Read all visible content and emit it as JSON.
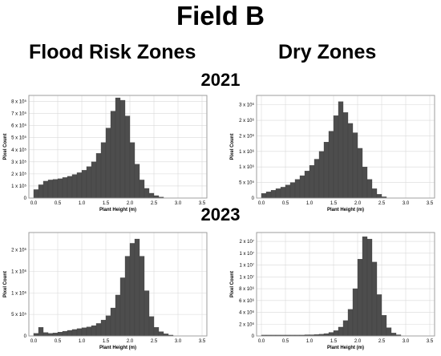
{
  "title": "Field B",
  "column_headers": [
    "Flood Risk Zones",
    "Dry Zones"
  ],
  "year_labels": [
    "2021",
    "2023"
  ],
  "colors": {
    "bar": "#4d4d4d",
    "grid": "#d9d9d9",
    "frame": "#999999"
  },
  "chart_data": [
    {
      "type": "bar",
      "panel": "Flood Risk Zones 2021",
      "xlabel": "Plant Height (m)",
      "ylabel": "Pixel Count",
      "xlim": [
        -0.1,
        3.6
      ],
      "ylim": [
        0,
        850000
      ],
      "x_ticks": [
        "0.0",
        "0.5",
        "1.0",
        "1.5",
        "2.0",
        "2.5",
        "3.0",
        "3.5"
      ],
      "y_ticks": [
        {
          "value": 0,
          "label": "0"
        },
        {
          "value": 100000,
          "label": "1 x 10⁵"
        },
        {
          "value": 200000,
          "label": "2 x 10⁵"
        },
        {
          "value": 300000,
          "label": "3 x 10⁵"
        },
        {
          "value": 400000,
          "label": "4 x 10⁵"
        },
        {
          "value": 500000,
          "label": "5 x 10⁵"
        },
        {
          "value": 600000,
          "label": "6 x 10⁵"
        },
        {
          "value": 700000,
          "label": "7 x 10⁵"
        },
        {
          "value": 800000,
          "label": "8 x 10⁵"
        }
      ],
      "bin_width": 0.1,
      "bin_starts": [
        0.0,
        0.1,
        0.2,
        0.3,
        0.4,
        0.5,
        0.6,
        0.7,
        0.8,
        0.9,
        1.0,
        1.1,
        1.2,
        1.3,
        1.4,
        1.5,
        1.6,
        1.7,
        1.8,
        1.9,
        2.0,
        2.1,
        2.2,
        2.3,
        2.4,
        2.5,
        2.6
      ],
      "values": [
        70000,
        110000,
        140000,
        150000,
        155000,
        160000,
        170000,
        180000,
        195000,
        210000,
        230000,
        260000,
        300000,
        370000,
        460000,
        580000,
        720000,
        830000,
        810000,
        680000,
        460000,
        280000,
        150000,
        80000,
        40000,
        20000,
        8000
      ]
    },
    {
      "type": "bar",
      "panel": "Dry Zones 2021",
      "xlabel": "Plant Height (m)",
      "ylabel": "Pixel Count",
      "xlim": [
        -0.1,
        3.6
      ],
      "ylim": [
        0,
        3300000
      ],
      "x_ticks": [
        "0.0",
        "0.5",
        "1.0",
        "1.5",
        "2.0",
        "2.5",
        "3.0",
        "3.5"
      ],
      "y_ticks": [
        {
          "value": 0,
          "label": "0"
        },
        {
          "value": 500000,
          "label": "5 x 10⁵"
        },
        {
          "value": 1000000,
          "label": "1 x 10⁶"
        },
        {
          "value": 1500000,
          "label": "1 x 10⁶"
        },
        {
          "value": 2000000,
          "label": "2 x 10⁶"
        },
        {
          "value": 2500000,
          "label": "2 x 10⁶"
        },
        {
          "value": 3000000,
          "label": "3 x 10⁶"
        }
      ],
      "bin_width": 0.1,
      "bin_starts": [
        0.0,
        0.1,
        0.2,
        0.3,
        0.4,
        0.5,
        0.6,
        0.7,
        0.8,
        0.9,
        1.0,
        1.1,
        1.2,
        1.3,
        1.4,
        1.5,
        1.6,
        1.7,
        1.8,
        1.9,
        2.0,
        2.1,
        2.2,
        2.3,
        2.4,
        2.5
      ],
      "values": [
        150000,
        200000,
        250000,
        300000,
        350000,
        420000,
        500000,
        600000,
        720000,
        870000,
        1050000,
        1250000,
        1500000,
        1800000,
        2150000,
        2650000,
        3100000,
        2750000,
        2400000,
        2100000,
        1600000,
        1000000,
        600000,
        300000,
        120000,
        40000
      ]
    },
    {
      "type": "bar",
      "panel": "Flood Risk Zones 2023",
      "xlabel": "Plant Height (m)",
      "ylabel": "Pixel Count",
      "xlim": [
        -0.1,
        3.6
      ],
      "ylim": [
        0,
        2400000
      ],
      "x_ticks": [
        "0.0",
        "0.5",
        "1.0",
        "1.5",
        "2.0",
        "2.5",
        "3.0",
        "3.5"
      ],
      "y_ticks": [
        {
          "value": 0,
          "label": "0"
        },
        {
          "value": 500000,
          "label": "5 x 10⁵"
        },
        {
          "value": 1000000,
          "label": "1 x 10⁶"
        },
        {
          "value": 1500000,
          "label": "1 x 10⁶"
        },
        {
          "value": 2000000,
          "label": "2 x 10⁶"
        }
      ],
      "bin_width": 0.1,
      "bin_starts": [
        0.0,
        0.1,
        0.2,
        0.3,
        0.4,
        0.5,
        0.6,
        0.7,
        0.8,
        0.9,
        1.0,
        1.1,
        1.2,
        1.3,
        1.4,
        1.5,
        1.6,
        1.7,
        1.8,
        1.9,
        2.0,
        2.1,
        2.2,
        2.3,
        2.4,
        2.5,
        2.6,
        2.7,
        2.8
      ],
      "values": [
        60000,
        200000,
        80000,
        60000,
        70000,
        90000,
        110000,
        130000,
        150000,
        170000,
        190000,
        210000,
        240000,
        290000,
        370000,
        470000,
        650000,
        950000,
        1350000,
        1850000,
        2150000,
        2250000,
        1850000,
        1050000,
        450000,
        200000,
        100000,
        50000,
        20000
      ]
    },
    {
      "type": "bar",
      "panel": "Dry Zones 2023",
      "xlabel": "Plant Height (m)",
      "ylabel": "Pixel Count",
      "xlim": [
        -0.1,
        3.6
      ],
      "ylim": [
        0,
        17500000
      ],
      "x_ticks": [
        "0.0",
        "0.5",
        "1.0",
        "1.5",
        "2.0",
        "2.5",
        "3.0",
        "3.5"
      ],
      "y_ticks": [
        {
          "value": 0,
          "label": "0"
        },
        {
          "value": 2000000,
          "label": "2 x 10⁶"
        },
        {
          "value": 4000000,
          "label": "4 x 10⁶"
        },
        {
          "value": 6000000,
          "label": "6 x 10⁶"
        },
        {
          "value": 8000000,
          "label": "8 x 10⁶"
        },
        {
          "value": 10000000,
          "label": "1 x 10⁷"
        },
        {
          "value": 12000000,
          "label": "1 x 10⁷"
        },
        {
          "value": 14000000,
          "label": "1 x 10⁷"
        },
        {
          "value": 16000000,
          "label": "2 x 10⁷"
        }
      ],
      "bin_width": 0.1,
      "bin_starts": [
        0.0,
        0.1,
        0.2,
        0.3,
        0.4,
        0.5,
        0.6,
        0.7,
        0.8,
        0.9,
        1.0,
        1.1,
        1.2,
        1.3,
        1.4,
        1.5,
        1.6,
        1.7,
        1.8,
        1.9,
        2.0,
        2.1,
        2.2,
        2.3,
        2.4,
        2.5,
        2.6,
        2.7,
        2.8
      ],
      "values": [
        150000,
        150000,
        150000,
        150000,
        150000,
        150000,
        150000,
        150000,
        150000,
        200000,
        200000,
        250000,
        300000,
        400000,
        600000,
        900000,
        1500000,
        2600000,
        4500000,
        8000000,
        13000000,
        16800000,
        16400000,
        12500000,
        7000000,
        3500000,
        1400000,
        500000,
        200000
      ]
    }
  ]
}
